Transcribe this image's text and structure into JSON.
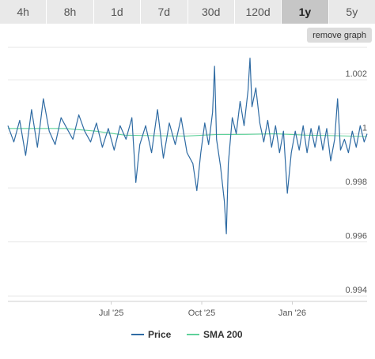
{
  "tabs": [
    {
      "label": "4h",
      "active": false
    },
    {
      "label": "8h",
      "active": false
    },
    {
      "label": "1d",
      "active": false
    },
    {
      "label": "7d",
      "active": false
    },
    {
      "label": "30d",
      "active": false
    },
    {
      "label": "120d",
      "active": false
    },
    {
      "label": "1y",
      "active": true
    },
    {
      "label": "5y",
      "active": false
    }
  ],
  "remove_graph_label": "remove graph",
  "colors": {
    "price": "#2f6ba3",
    "sma": "#5fd19a",
    "grid": "#e6e6e6",
    "axis": "#cfcfcf"
  },
  "chart_data": {
    "type": "line",
    "x_range": [
      "2025-03-18",
      "2026-03-18"
    ],
    "ylim": [
      0.9938,
      1.0032
    ],
    "y_ticks": [
      0.994,
      0.996,
      0.998,
      1,
      1.002
    ],
    "y_tick_labels": [
      "0.994",
      "0.996",
      "0.998",
      "1",
      "1.002"
    ],
    "x_ticks": [
      {
        "date": "2025-07-01",
        "label": "Jul '25"
      },
      {
        "date": "2025-10-01",
        "label": "Oct '25"
      },
      {
        "date": "2026-01-01",
        "label": "Jan '26"
      }
    ],
    "grid": true,
    "legend": "bottom",
    "series": [
      {
        "name": "Price",
        "color": "#2f6ba3",
        "points": [
          [
            "2025-03-18",
            1.0003
          ],
          [
            "2025-03-24",
            0.9997
          ],
          [
            "2025-03-30",
            1.0005
          ],
          [
            "2025-04-05",
            0.9992
          ],
          [
            "2025-04-11",
            1.0009
          ],
          [
            "2025-04-17",
            0.9995
          ],
          [
            "2025-04-23",
            1.0013
          ],
          [
            "2025-04-29",
            1.0001
          ],
          [
            "2025-05-05",
            0.9996
          ],
          [
            "2025-05-11",
            1.0006
          ],
          [
            "2025-05-17",
            1.0002
          ],
          [
            "2025-05-23",
            0.9998
          ],
          [
            "2025-05-29",
            1.0007
          ],
          [
            "2025-06-04",
            1.0001
          ],
          [
            "2025-06-10",
            0.9997
          ],
          [
            "2025-06-16",
            1.0004
          ],
          [
            "2025-06-22",
            0.9995
          ],
          [
            "2025-06-28",
            1.0002
          ],
          [
            "2025-07-04",
            0.9994
          ],
          [
            "2025-07-10",
            1.0003
          ],
          [
            "2025-07-16",
            0.9998
          ],
          [
            "2025-07-22",
            1.0006
          ],
          [
            "2025-07-26",
            0.9982
          ],
          [
            "2025-07-30",
            0.9996
          ],
          [
            "2025-08-05",
            1.0003
          ],
          [
            "2025-08-11",
            0.9993
          ],
          [
            "2025-08-17",
            1.0009
          ],
          [
            "2025-08-23",
            0.9991
          ],
          [
            "2025-08-29",
            1.0004
          ],
          [
            "2025-09-04",
            0.9996
          ],
          [
            "2025-09-10",
            1.0006
          ],
          [
            "2025-09-16",
            0.9993
          ],
          [
            "2025-09-22",
            0.9989
          ],
          [
            "2025-09-26",
            0.9979
          ],
          [
            "2025-09-30",
            0.9993
          ],
          [
            "2025-10-04",
            1.0004
          ],
          [
            "2025-10-08",
            0.9996
          ],
          [
            "2025-10-12",
            1.0008
          ],
          [
            "2025-10-14",
            1.0025
          ],
          [
            "2025-10-16",
            0.9998
          ],
          [
            "2025-10-20",
            0.9988
          ],
          [
            "2025-10-24",
            0.9975
          ],
          [
            "2025-10-26",
            0.9963
          ],
          [
            "2025-10-28",
            0.9989
          ],
          [
            "2025-11-01",
            1.0006
          ],
          [
            "2025-11-05",
            1.0
          ],
          [
            "2025-11-09",
            1.0012
          ],
          [
            "2025-11-13",
            1.0003
          ],
          [
            "2025-11-17",
            1.0016
          ],
          [
            "2025-11-19",
            1.0028
          ],
          [
            "2025-11-21",
            1.001
          ],
          [
            "2025-11-25",
            1.0017
          ],
          [
            "2025-11-29",
            1.0004
          ],
          [
            "2025-12-03",
            0.9997
          ],
          [
            "2025-12-07",
            1.0005
          ],
          [
            "2025-12-11",
            0.9995
          ],
          [
            "2025-12-15",
            1.0003
          ],
          [
            "2025-12-19",
            0.9993
          ],
          [
            "2025-12-23",
            1.0001
          ],
          [
            "2025-12-27",
            0.9978
          ],
          [
            "2025-12-31",
            0.9993
          ],
          [
            "2026-01-04",
            1.0001
          ],
          [
            "2026-01-08",
            0.9994
          ],
          [
            "2026-01-12",
            1.0003
          ],
          [
            "2026-01-16",
            0.9993
          ],
          [
            "2026-01-20",
            1.0002
          ],
          [
            "2026-01-24",
            0.9995
          ],
          [
            "2026-01-28",
            1.0003
          ],
          [
            "2026-02-01",
            0.9994
          ],
          [
            "2026-02-05",
            1.0002
          ],
          [
            "2026-02-09",
            0.999
          ],
          [
            "2026-02-13",
            0.9998
          ],
          [
            "2026-02-16",
            1.0013
          ],
          [
            "2026-02-19",
            0.9994
          ],
          [
            "2026-02-23",
            0.9998
          ],
          [
            "2026-02-27",
            0.9993
          ],
          [
            "2026-03-03",
            1.0001
          ],
          [
            "2026-03-07",
            0.9995
          ],
          [
            "2026-03-11",
            1.0003
          ],
          [
            "2026-03-15",
            0.9997
          ],
          [
            "2026-03-18",
            1.0
          ]
        ]
      },
      {
        "name": "SMA 200",
        "color": "#5fd19a",
        "points": [
          [
            "2025-03-18",
            1.0002
          ],
          [
            "2025-04-15",
            1.0002
          ],
          [
            "2025-05-15",
            1.0002
          ],
          [
            "2025-06-15",
            1.0001
          ],
          [
            "2025-07-15",
            0.99995
          ],
          [
            "2025-08-15",
            0.99993
          ],
          [
            "2025-09-15",
            0.99992
          ],
          [
            "2025-10-15",
            0.99997
          ],
          [
            "2025-11-15",
            0.99998
          ],
          [
            "2025-12-15",
            1.0
          ],
          [
            "2026-01-15",
            0.99995
          ],
          [
            "2026-02-15",
            0.99993
          ],
          [
            "2026-03-18",
            0.9999
          ]
        ]
      }
    ]
  }
}
